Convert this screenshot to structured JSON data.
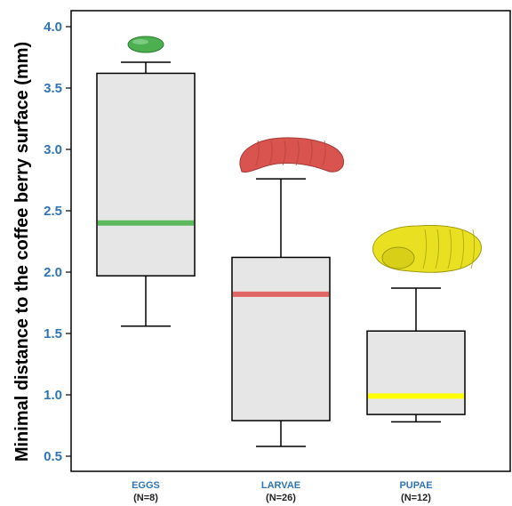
{
  "chart_data": {
    "type": "box",
    "title": "",
    "xlabel": "",
    "ylabel": "Minimal distance to the coffee berry surface (mm)",
    "ylim": [
      0.4,
      4.1
    ],
    "yticks": [
      "0.5",
      "1.0",
      "1.5",
      "2.0",
      "2.5",
      "3.0",
      "3.5",
      "4.0"
    ],
    "grid": false,
    "categories": [
      {
        "label": "EGGS",
        "n_label": "(N=8)",
        "icon": "egg-icon"
      },
      {
        "label": "LARVAE",
        "n_label": "(N=26)",
        "icon": "larva-icon"
      },
      {
        "label": "PUPAE",
        "n_label": "(N=12)",
        "icon": "pupa-icon"
      }
    ],
    "boxes": [
      {
        "min": 1.56,
        "q1": 1.97,
        "median": 2.4,
        "q3": 3.62,
        "max": 3.71,
        "median_color": "#5cb85c"
      },
      {
        "min": 0.58,
        "q1": 0.79,
        "median": 1.82,
        "q3": 2.12,
        "max": 2.76,
        "median_color": "#e06666"
      },
      {
        "min": 0.78,
        "q1": 0.84,
        "median": 0.99,
        "q3": 1.52,
        "max": 1.87,
        "median_color": "#ffff00"
      }
    ],
    "box_fill": "#e7e6e6",
    "tick_color": "#2e75b6",
    "icon_colors": {
      "egg": "#4caf50",
      "larva": "#d9534f",
      "pupa": "#e8e020"
    }
  }
}
